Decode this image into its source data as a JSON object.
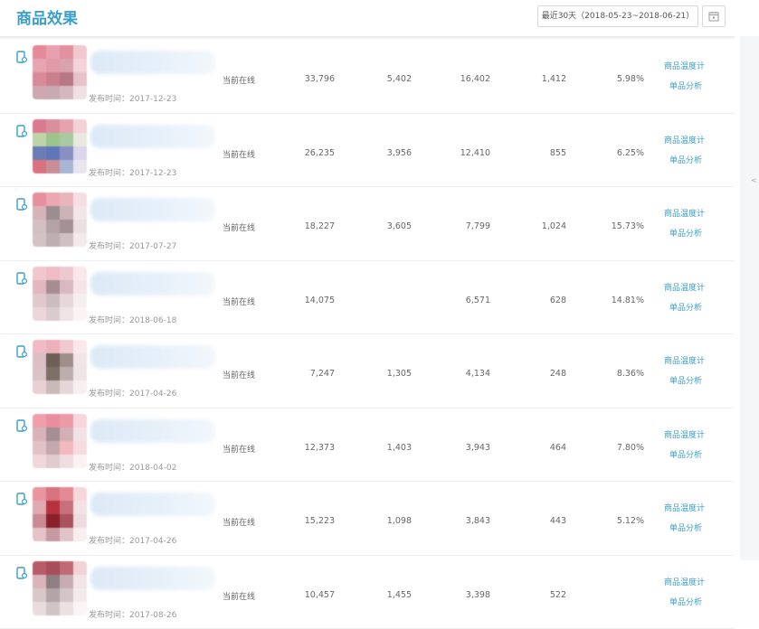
{
  "header": {
    "title": "商品效果",
    "date_range_label": "最近30天（2018-05-23~2018-06-21）",
    "calendar_icon": "calendar-icon"
  },
  "side": {
    "collapse_glyph": "<"
  },
  "table": {
    "status_text": "当前在线",
    "action_heat": "商品温度计",
    "action_analysis": "单品分析",
    "rows": [
      {
        "pub": "发布时间：2017-12-23",
        "v1": "33,796",
        "v2": "5,402",
        "v3": "16,402",
        "v4": "1,412",
        "v5": "5.98%",
        "colors": [
          "#e48a9a",
          "#e8a0ae",
          "#e3909f",
          "#f1c7d0",
          "#e7a4b1",
          "#e09aa8",
          "#d8a3ae",
          "#f3d4da",
          "#d88a99",
          "#c8808d",
          "#b87784",
          "#e6c2c9",
          "#cfa7b0",
          "#c8aab2",
          "#d3b8bf",
          "#efe0e3"
        ]
      },
      {
        "pub": "发布时间：2017-12-23",
        "v1": "26,235",
        "v2": "3,956",
        "v3": "12,410",
        "v4": "855",
        "v5": "6.25%",
        "colors": [
          "#d97b8c",
          "#d9909c",
          "#e5a3ad",
          "#f3d2d8",
          "#bdd4a8",
          "#9cc58e",
          "#a9c9a0",
          "#e9eadf",
          "#6a7eb5",
          "#5f77b9",
          "#8a8fc2",
          "#dcd6ea",
          "#d9737f",
          "#c98d97",
          "#a7b7d3",
          "#e9e5ee"
        ]
      },
      {
        "pub": "发布时间：2017-07-27",
        "v1": "18,227",
        "v2": "3,605",
        "v3": "7,799",
        "v4": "1,024",
        "v5": "15.73%",
        "colors": [
          "#e6909e",
          "#eba8b2",
          "#e8b5bd",
          "#f6dfe2",
          "#d6b2b9",
          "#9a8e91",
          "#cbb3b8",
          "#f2e6e8",
          "#d3c0c4",
          "#b3a2a6",
          "#a39195",
          "#ebdfe1",
          "#d5c2c5",
          "#bfaeb1",
          "#cfc0c3",
          "#f3eaeb"
        ]
      },
      {
        "pub": "发布时间：2018-06-18",
        "v1": "14,075",
        "v2": "",
        "v3": "6,571",
        "v4": "628",
        "v5": "14.81%",
        "colors": [
          "#f0c7cf",
          "#efbcc5",
          "#edc9cf",
          "#f9e8eb",
          "#e2b7bf",
          "#a58d92",
          "#d7b9bf",
          "#f5e5e8",
          "#e1c8cd",
          "#cbbcc0",
          "#e6d7da",
          "#f7eef0",
          "#ecd6da",
          "#d9cbce",
          "#efe3e5",
          "#fbf4f5"
        ]
      },
      {
        "pub": "发布时间：2017-04-26",
        "v1": "7,247",
        "v2": "1,305",
        "v3": "4,134",
        "v4": "248",
        "v5": "8.36%",
        "colors": [
          "#efbcc5",
          "#ecb1bb",
          "#f1c9d0",
          "#fae8eb",
          "#dcbfc4",
          "#6d5e57",
          "#9e8e8c",
          "#f2e5e7",
          "#d8c3c6",
          "#7d6e67",
          "#bcaeac",
          "#efe4e6",
          "#e8d0d4",
          "#c9b9b8",
          "#e5d7d9",
          "#f8eff1"
        ]
      },
      {
        "pub": "发布时间：2018-04-02",
        "v1": "12,373",
        "v2": "1,403",
        "v3": "3,943",
        "v4": "464",
        "v5": "7.80%",
        "colors": [
          "#ee9fab",
          "#e98e9c",
          "#eb9aa7",
          "#f7d6dc",
          "#d9b3b9",
          "#a48f94",
          "#d2b0b6",
          "#f3e2e5",
          "#e0c2c7",
          "#c5a8ad",
          "#f2b9bf",
          "#f4dce0",
          "#efd7db",
          "#e0cbcf",
          "#f0dde0",
          "#fbf2f4"
        ]
      },
      {
        "pub": "发布时间：2017-04-26",
        "v1": "15,223",
        "v2": "1,098",
        "v3": "3,843",
        "v4": "443",
        "v5": "5.12%",
        "colors": [
          "#e8959f",
          "#d8747f",
          "#e48a95",
          "#f6d8dc",
          "#e0a9b1",
          "#b8323e",
          "#c7717c",
          "#f3e1e4",
          "#cb8a93",
          "#8a1f2c",
          "#a9525d",
          "#eedde0",
          "#e6c3c8",
          "#c79aa1",
          "#e0c4c8",
          "#f8eef0"
        ]
      },
      {
        "pub": "发布时间：2017-08-26",
        "v1": "10,457",
        "v2": "1,455",
        "v3": "3,398",
        "v4": "522",
        "v5": "",
        "colors": [
          "#b85c69",
          "#a84d5b",
          "#c06a77",
          "#f1d2d7",
          "#dab4ba",
          "#8f7f82",
          "#c7adb2",
          "#f2e4e7",
          "#d9c7ca",
          "#b2a4a7",
          "#d4c5c8",
          "#f3eaec",
          "#e9dcde",
          "#d1c4c7",
          "#ebe0e2",
          "#faf5f6"
        ]
      }
    ]
  }
}
